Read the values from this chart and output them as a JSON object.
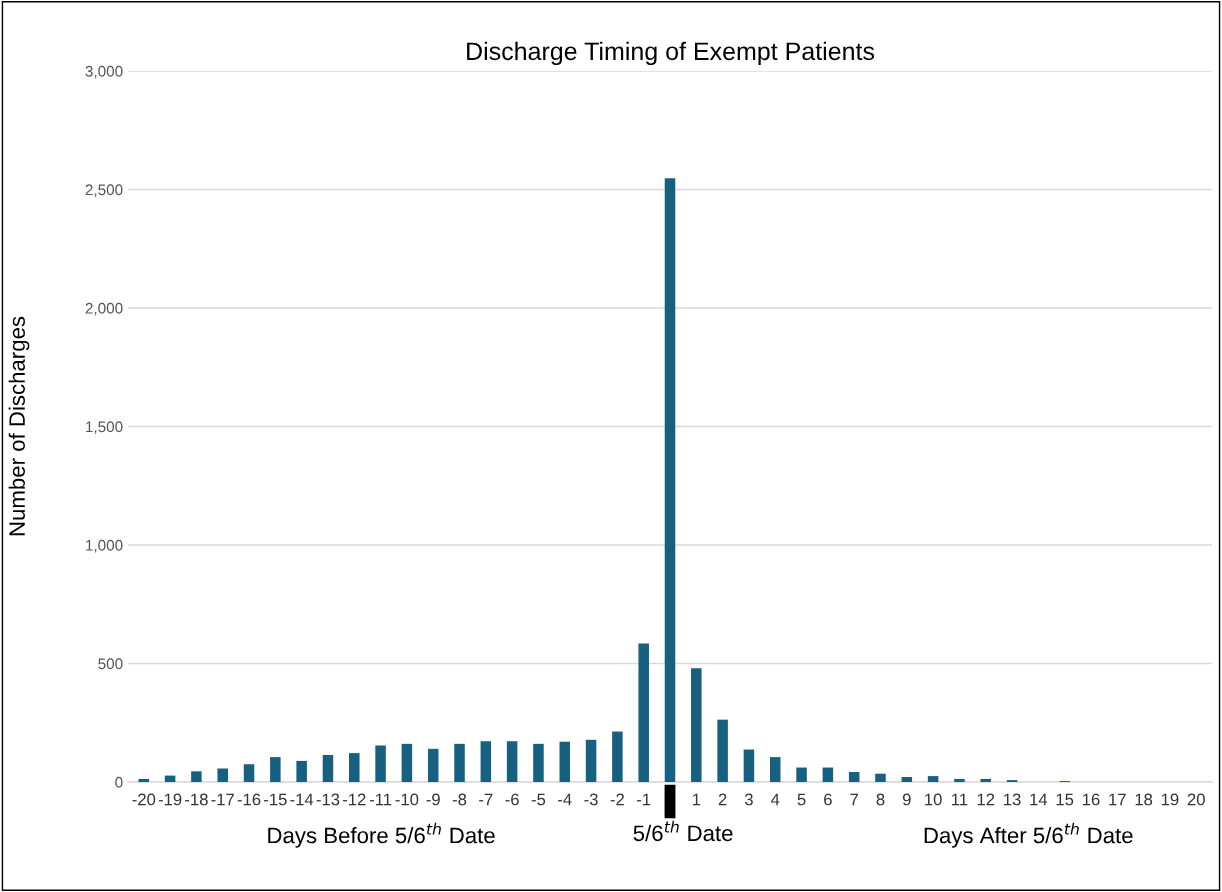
{
  "chart_data": {
    "type": "bar",
    "title": "Discharge Timing of Exempt Patients",
    "ylabel": "Number of Discharges",
    "categories": [
      "-20",
      "-19",
      "-18",
      "-17",
      "-16",
      "-15",
      "-14",
      "-13",
      "-12",
      "-11",
      "-10",
      "-9",
      "-8",
      "-7",
      "-6",
      "-5",
      "-4",
      "-3",
      "-2",
      "-1",
      null,
      "1",
      "2",
      "3",
      "4",
      "5",
      "6",
      "7",
      "8",
      "9",
      "10",
      "11",
      "12",
      "13",
      "14",
      "15",
      "16",
      "17",
      "18",
      "19",
      "20"
    ],
    "values": [
      13,
      27,
      45,
      57,
      75,
      105,
      89,
      114,
      122,
      154,
      161,
      140,
      161,
      172,
      172,
      161,
      170,
      178,
      213,
      584,
      2547,
      480,
      263,
      137,
      105,
      61,
      61,
      42,
      35,
      21,
      25,
      13,
      13,
      8,
      0,
      4,
      0,
      0,
      0,
      0,
      0
    ],
    "color": "#17607f",
    "ylim": [
      0,
      3000
    ],
    "yticks": [
      {
        "value": 0,
        "label": "0"
      },
      {
        "value": 500,
        "label": "500"
      },
      {
        "value": 1000,
        "label": "1,000"
      },
      {
        "value": 1500,
        "label": "1,500"
      },
      {
        "value": 2000,
        "label": "2,000"
      },
      {
        "value": 2500,
        "label": "2,500"
      },
      {
        "value": 3000,
        "label": "3,000"
      }
    ],
    "grid": "y",
    "annotations": [
      "Days Before 5/6$^{th}$ Date",
      "5/6$^{th}$ Date",
      "Days After 5/6$^{th}$ Date"
    ]
  }
}
